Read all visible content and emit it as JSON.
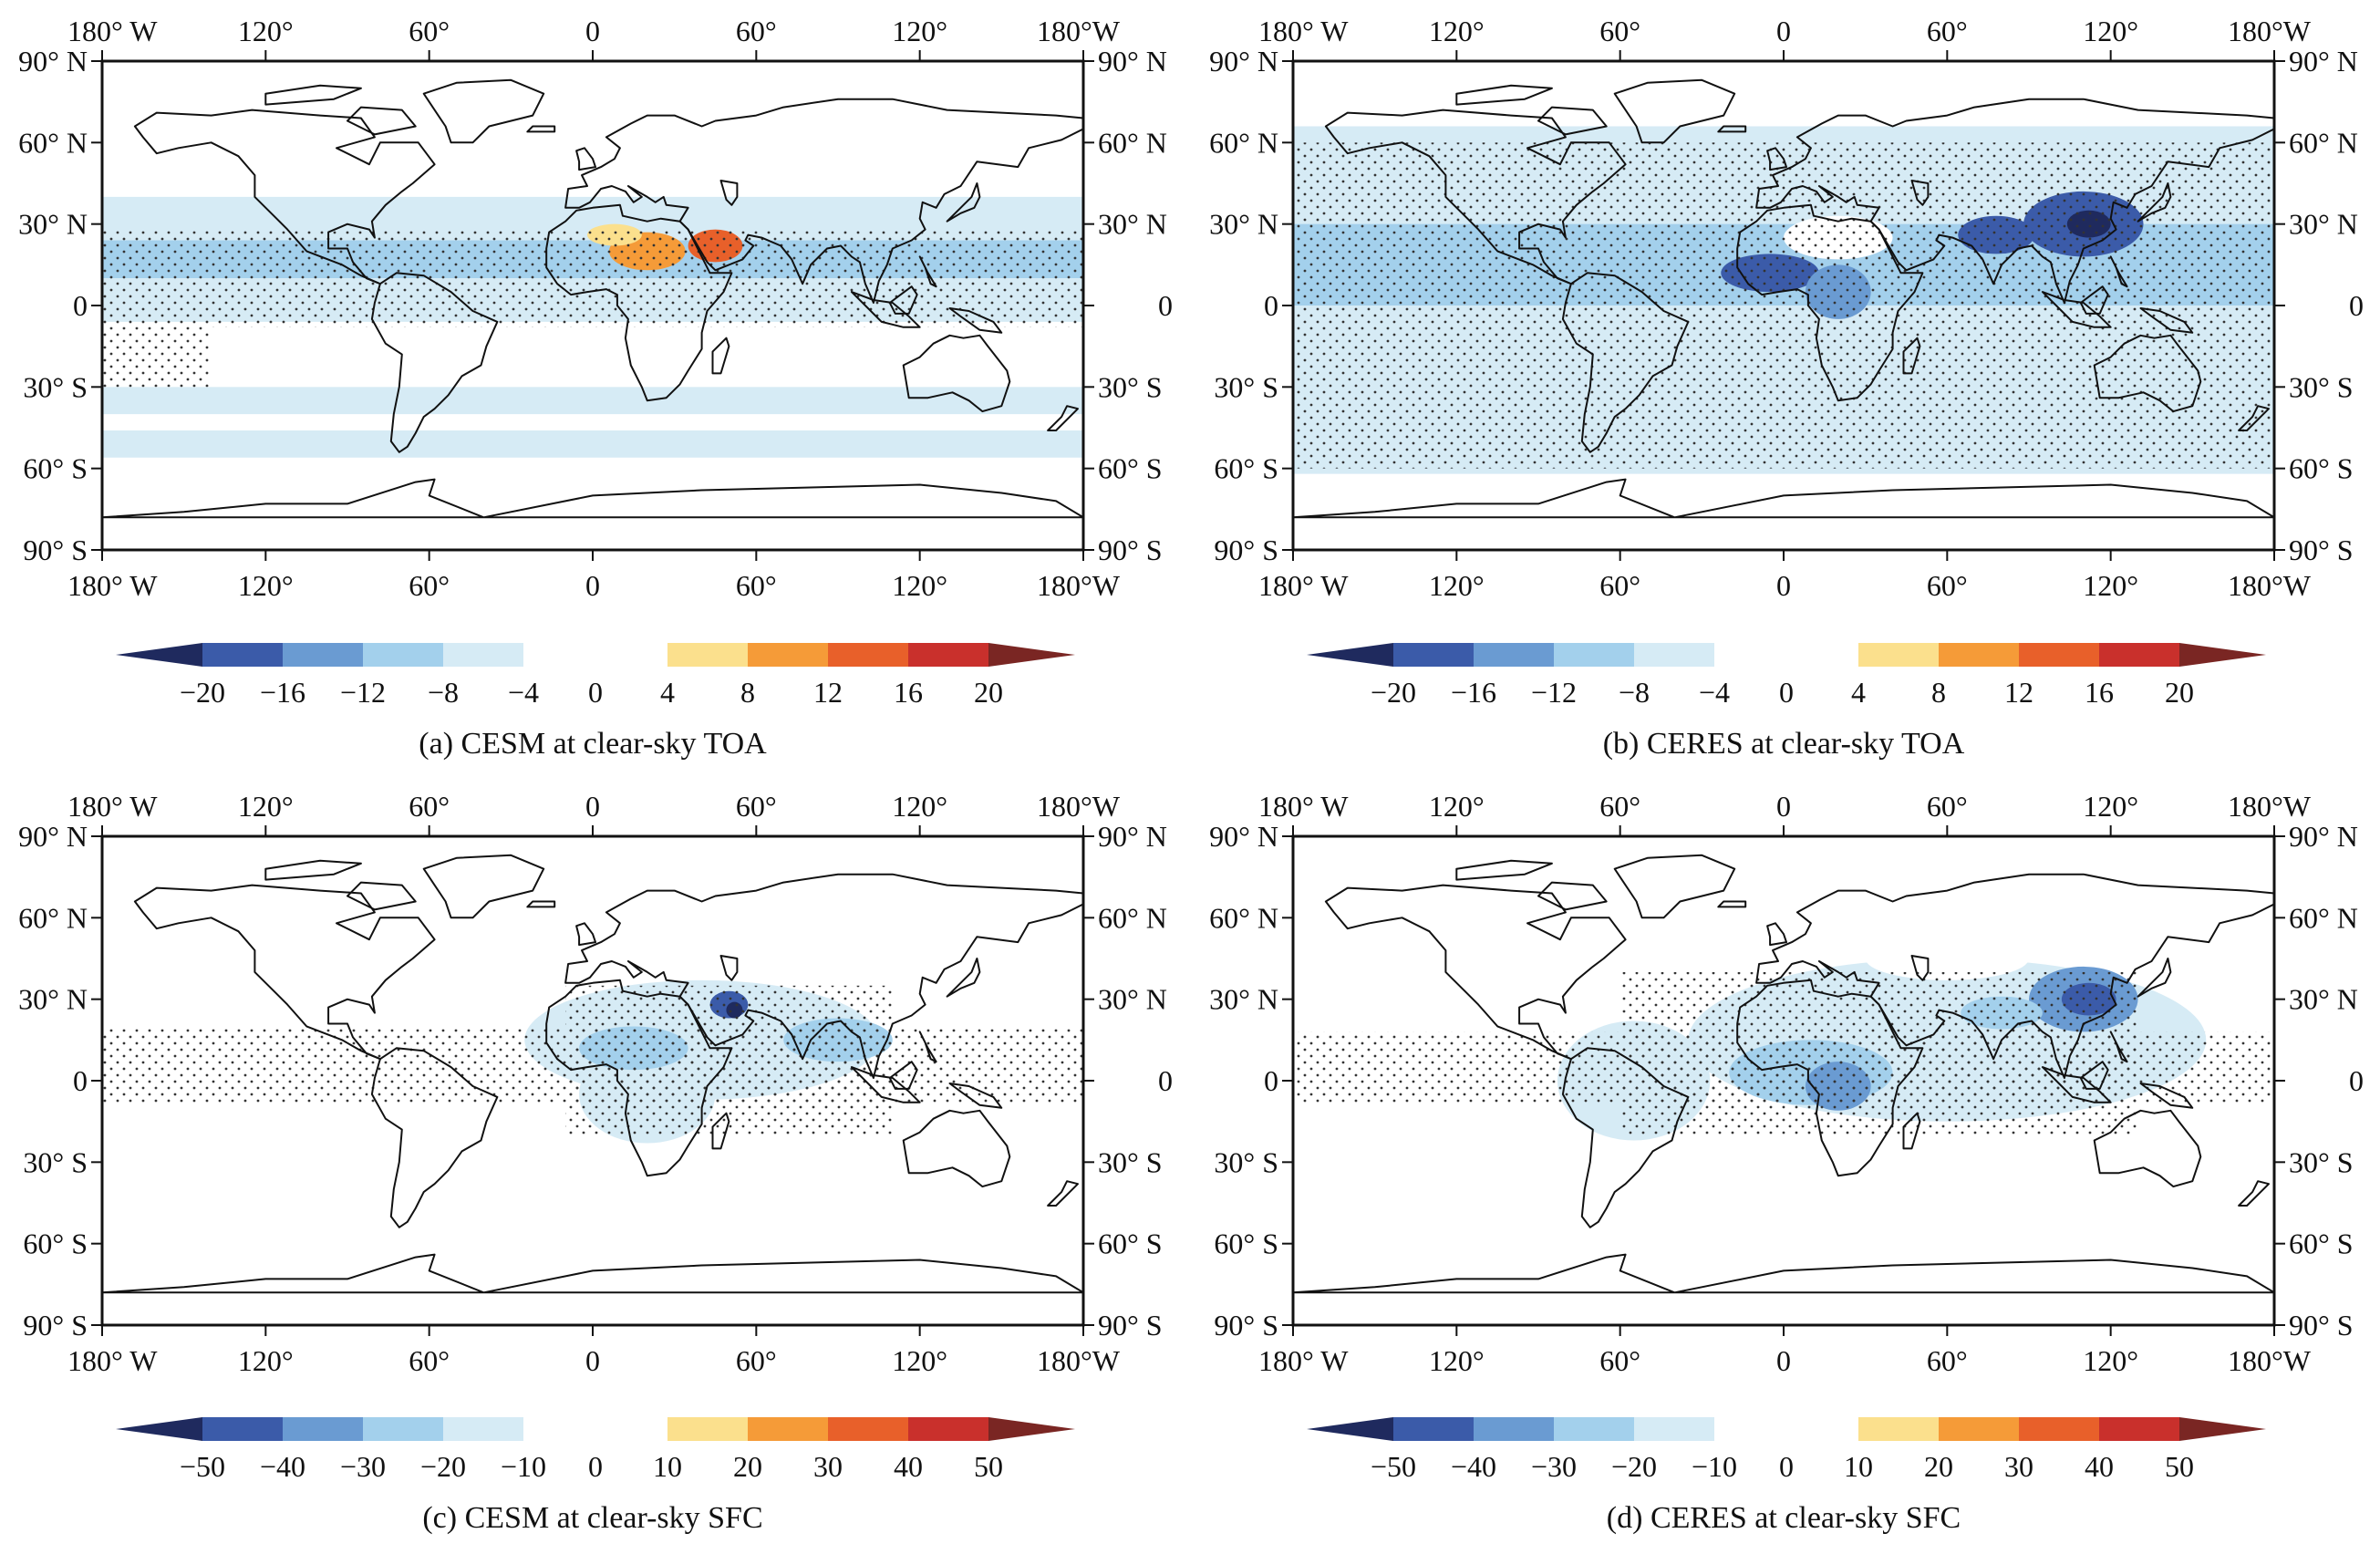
{
  "figure": {
    "panels": [
      {
        "id": "a",
        "caption": "(a) CESM at clear-sky TOA",
        "top_lon_labels": [
          "180° W",
          "120°",
          "60°",
          "0",
          "60°",
          "120°",
          "180°W"
        ],
        "bottom_lon_labels": [
          "180° W",
          "120°",
          "60°",
          "0",
          "60°",
          "120°",
          "180°W"
        ],
        "left_lat_labels": [
          "90° N",
          "60° N",
          "30° N",
          "0",
          "30° S",
          "60° S",
          "90° S"
        ],
        "right_lat_labels": [
          "90° N",
          "60° N",
          "30° N",
          "0",
          "30° S",
          "60° S",
          "90° S"
        ],
        "colorbar": {
          "neg_colors": [
            "#1f2a5e",
            "#3b5ba9",
            "#6a9bd2",
            "#a3d0ec",
            "#d6ebf5"
          ],
          "pos_colors": [
            "#fbe08d",
            "#f59b38",
            "#e8602a",
            "#c9302c",
            "#7a2623"
          ],
          "neg_labels": [
            "−20",
            "−16",
            "−12",
            "−8",
            "−4"
          ],
          "zero_label": "0",
          "pos_labels": [
            "4",
            "8",
            "12",
            "16",
            "20"
          ]
        },
        "field": [
          {
            "kind": "band",
            "lat": [
              24,
              40
            ],
            "color": "#d6ebf5"
          },
          {
            "kind": "band",
            "lat": [
              10,
              24
            ],
            "color": "#a3d0ec"
          },
          {
            "kind": "band",
            "lat": [
              -6,
              10
            ],
            "color": "#d6ebf5"
          },
          {
            "kind": "band",
            "lat": [
              -40,
              -30
            ],
            "color": "#d6ebf5"
          },
          {
            "kind": "band",
            "lat": [
              -56,
              -46
            ],
            "color": "#d6ebf5"
          },
          {
            "kind": "ellipse",
            "lon": 20,
            "lat": 20,
            "rlon": 14,
            "rlat": 7,
            "color": "#f59b38"
          },
          {
            "kind": "ellipse",
            "lon": 45,
            "lat": 22,
            "rlon": 10,
            "rlat": 6,
            "color": "#e8602a"
          },
          {
            "kind": "ellipse",
            "lon": 8,
            "lat": 26,
            "rlon": 10,
            "rlat": 4,
            "color": "#fbe08d"
          }
        ],
        "stipple": [
          {
            "lon": [
              -180,
              180
            ],
            "lat": [
              -8,
              28
            ]
          },
          {
            "lon": [
              -180,
              -140
            ],
            "lat": [
              -30,
              -8
            ]
          }
        ]
      },
      {
        "id": "b",
        "caption": "(b) CERES at clear-sky TOA",
        "top_lon_labels": [
          "180° W",
          "120°",
          "60°",
          "0",
          "60°",
          "120°",
          "180°W"
        ],
        "bottom_lon_labels": [
          "180° W",
          "120°",
          "60°",
          "0",
          "60°",
          "120°",
          "180°W"
        ],
        "left_lat_labels": [
          "90° N",
          "60° N",
          "30° N",
          "0",
          "30° S",
          "60° S",
          "90° S"
        ],
        "right_lat_labels": [
          "90° N",
          "60° N",
          "30° N",
          "0",
          "30° S",
          "60° S",
          "90° S"
        ],
        "colorbar": {
          "neg_colors": [
            "#1f2a5e",
            "#3b5ba9",
            "#6a9bd2",
            "#a3d0ec",
            "#d6ebf5"
          ],
          "pos_colors": [
            "#fbe08d",
            "#f59b38",
            "#e8602a",
            "#c9302c",
            "#7a2623"
          ],
          "neg_labels": [
            "−20",
            "−16",
            "−12",
            "−8",
            "−4"
          ],
          "zero_label": "0",
          "pos_labels": [
            "4",
            "8",
            "12",
            "16",
            "20"
          ]
        },
        "field": [
          {
            "kind": "band",
            "lat": [
              -62,
              66
            ],
            "color": "#d6ebf5"
          },
          {
            "kind": "band",
            "lat": [
              0,
              30
            ],
            "color": "#a3d0ec"
          },
          {
            "kind": "ellipse",
            "lon": 110,
            "lat": 30,
            "rlon": 22,
            "rlat": 12,
            "color": "#3b5ba9"
          },
          {
            "kind": "ellipse",
            "lon": 112,
            "lat": 30,
            "rlon": 8,
            "rlat": 5,
            "color": "#1f2a5e"
          },
          {
            "kind": "ellipse",
            "lon": 78,
            "lat": 26,
            "rlon": 14,
            "rlat": 7,
            "color": "#3b5ba9"
          },
          {
            "kind": "ellipse",
            "lon": -5,
            "lat": 12,
            "rlon": 18,
            "rlat": 7,
            "color": "#3b5ba9"
          },
          {
            "kind": "ellipse",
            "lon": 20,
            "lat": 5,
            "rlon": 12,
            "rlat": 10,
            "color": "#6a9bd2"
          },
          {
            "kind": "ellipse",
            "lon": 20,
            "lat": 25,
            "rlon": 20,
            "rlat": 8,
            "color": "#ffffff"
          }
        ],
        "stipple": [
          {
            "lon": [
              -180,
              180
            ],
            "lat": [
              -60,
              60
            ]
          }
        ]
      },
      {
        "id": "c",
        "caption": "(c) CESM at clear-sky SFC",
        "top_lon_labels": [
          "180° W",
          "120°",
          "60°",
          "0",
          "60°",
          "120°",
          "180°W"
        ],
        "bottom_lon_labels": [
          "180° W",
          "120°",
          "60°",
          "0",
          "60°",
          "120°",
          "180°W"
        ],
        "left_lat_labels": [
          "90° N",
          "60° N",
          "30° N",
          "0",
          "30° S",
          "60° S",
          "90° S"
        ],
        "right_lat_labels": [
          "90° N",
          "60° N",
          "30° N",
          "0",
          "30° S",
          "60° S",
          "90° S"
        ],
        "colorbar": {
          "neg_colors": [
            "#1f2a5e",
            "#3b5ba9",
            "#6a9bd2",
            "#a3d0ec",
            "#d6ebf5"
          ],
          "pos_colors": [
            "#fbe08d",
            "#f59b38",
            "#e8602a",
            "#c9302c",
            "#7a2623"
          ],
          "neg_labels": [
            "−50",
            "−40",
            "−30",
            "−20",
            "−10"
          ],
          "zero_label": "0",
          "pos_labels": [
            "10",
            "20",
            "30",
            "40",
            "50"
          ]
        },
        "field": [
          {
            "kind": "ellipse",
            "lon": 40,
            "lat": 15,
            "rlon": 65,
            "rlat": 22,
            "color": "#d6ebf5"
          },
          {
            "kind": "ellipse",
            "lon": 20,
            "lat": -5,
            "rlon": 25,
            "rlat": 18,
            "color": "#d6ebf5"
          },
          {
            "kind": "ellipse",
            "lon": 15,
            "lat": 12,
            "rlon": 20,
            "rlat": 8,
            "color": "#a3d0ec"
          },
          {
            "kind": "ellipse",
            "lon": 50,
            "lat": 28,
            "rlon": 7,
            "rlat": 5,
            "color": "#3b5ba9"
          },
          {
            "kind": "ellipse",
            "lon": 52,
            "lat": 26,
            "rlon": 3,
            "rlat": 3,
            "color": "#1f2a5e"
          },
          {
            "kind": "ellipse",
            "lon": 90,
            "lat": 15,
            "rlon": 20,
            "rlat": 8,
            "color": "#a3d0ec"
          }
        ],
        "stipple": [
          {
            "lon": [
              -180,
              180
            ],
            "lat": [
              -8,
              20
            ]
          },
          {
            "lon": [
              -10,
              110
            ],
            "lat": [
              -20,
              35
            ]
          }
        ]
      },
      {
        "id": "d",
        "caption": "(d) CERES at clear-sky SFC",
        "top_lon_labels": [
          "180° W",
          "120°",
          "60°",
          "0",
          "60°",
          "120°",
          "180°W"
        ],
        "bottom_lon_labels": [
          "180° W",
          "120°",
          "60°",
          "0",
          "60°",
          "120°",
          "180°W"
        ],
        "left_lat_labels": [
          "90° N",
          "60° N",
          "30° N",
          "0",
          "30° S",
          "60° S",
          "90° S"
        ],
        "right_lat_labels": [
          "90° N",
          "60° N",
          "30° N",
          "0",
          "30° S",
          "60° S",
          "90° S"
        ],
        "colorbar": {
          "neg_colors": [
            "#1f2a5e",
            "#3b5ba9",
            "#6a9bd2",
            "#a3d0ec",
            "#d6ebf5"
          ],
          "pos_colors": [
            "#fbe08d",
            "#f59b38",
            "#e8602a",
            "#c9302c",
            "#7a2623"
          ],
          "neg_labels": [
            "−50",
            "−40",
            "−30",
            "−20",
            "−10"
          ],
          "zero_label": "0",
          "pos_labels": [
            "10",
            "20",
            "30",
            "40",
            "50"
          ]
        },
        "field": [
          {
            "kind": "ellipse",
            "lon": 60,
            "lat": 15,
            "rlon": 95,
            "rlat": 30,
            "color": "#d6ebf5"
          },
          {
            "kind": "ellipse",
            "lon": -55,
            "lat": 0,
            "rlon": 28,
            "rlat": 22,
            "color": "#d6ebf5"
          },
          {
            "kind": "ellipse",
            "lon": 10,
            "lat": 3,
            "rlon": 30,
            "rlat": 12,
            "color": "#a3d0ec"
          },
          {
            "kind": "ellipse",
            "lon": 20,
            "lat": -2,
            "rlon": 12,
            "rlat": 9,
            "color": "#6a9bd2"
          },
          {
            "kind": "ellipse",
            "lon": 110,
            "lat": 30,
            "rlon": 20,
            "rlat": 12,
            "color": "#6a9bd2"
          },
          {
            "kind": "ellipse",
            "lon": 112,
            "lat": 30,
            "rlon": 10,
            "rlat": 6,
            "color": "#3b5ba9"
          },
          {
            "kind": "ellipse",
            "lon": 80,
            "lat": 25,
            "rlon": 15,
            "rlat": 6,
            "color": "#a3d0ec"
          },
          {
            "kind": "ellipse",
            "lon": 60,
            "lat": 45,
            "rlon": 30,
            "rlat": 8,
            "color": "#ffffff"
          }
        ],
        "stipple": [
          {
            "lon": [
              -180,
              180
            ],
            "lat": [
              -8,
              18
            ]
          },
          {
            "lon": [
              -60,
              130
            ],
            "lat": [
              -20,
              40
            ]
          }
        ]
      }
    ]
  }
}
